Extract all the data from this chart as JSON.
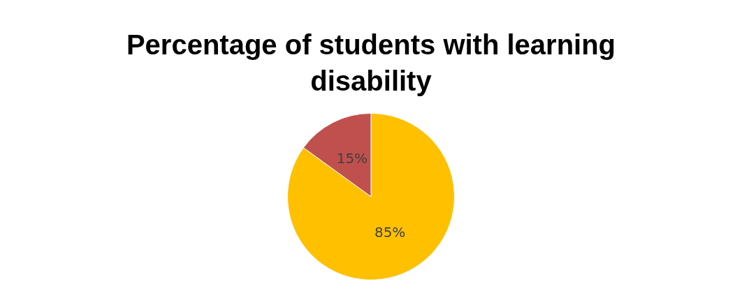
{
  "chart_data": {
    "type": "pie",
    "title": "Percentage of students with learning disability",
    "categories": [
      null,
      null
    ],
    "values": [
      85,
      15
    ],
    "colors": [
      "#ffc000",
      "#c0504d"
    ],
    "value_labels": [
      "85%",
      "15%"
    ],
    "legend": false
  }
}
